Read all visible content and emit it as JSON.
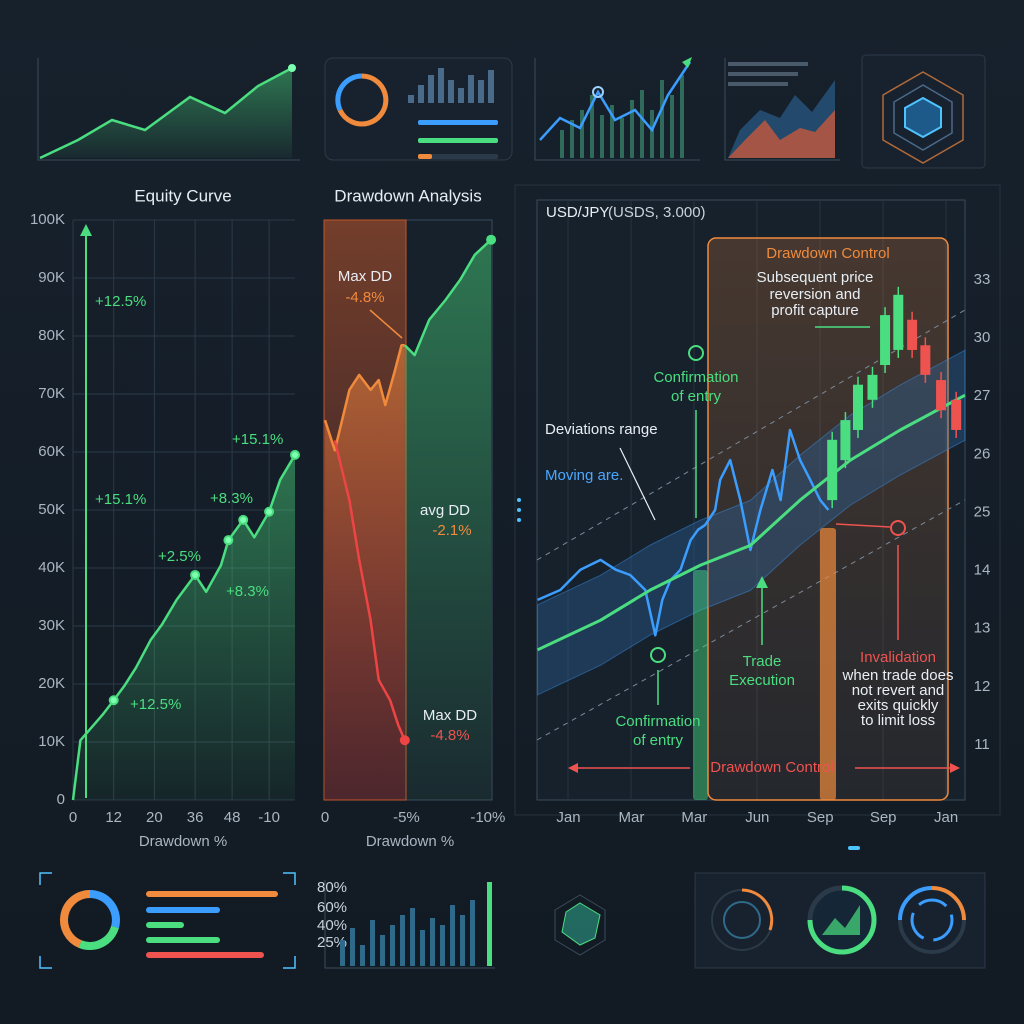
{
  "chart_data": [
    {
      "type": "line",
      "title": "Equity Curve",
      "xlabel": "Drawdown %",
      "color": "#4ade80",
      "x": [
        0,
        1,
        4,
        5.5,
        7,
        8.5,
        10.5,
        12,
        14,
        16.5,
        18,
        20,
        21,
        23,
        24.5,
        26.5,
        28,
        30
      ],
      "values": [
        0,
        10300,
        14700,
        17200,
        19800,
        22800,
        27600,
        30200,
        34500,
        38800,
        35900,
        40500,
        44800,
        48300,
        45300,
        49700,
        55200,
        59500
      ],
      "xlim": [
        0,
        30
      ],
      "xticks": [
        0,
        {
          "value": 5.5,
          "label": "12"
        },
        {
          "value": 11,
          "label": "20"
        },
        {
          "value": 16.5,
          "label": "36"
        },
        {
          "value": 21.5,
          "label": "48"
        },
        {
          "value": 26.5,
          "label": "-10"
        }
      ],
      "ylim": [
        0,
        100000
      ],
      "yticks": [
        0,
        {
          "value": 10000,
          "label": "10K"
        },
        {
          "value": 20000,
          "label": "20K"
        },
        {
          "value": 30000,
          "label": "30K"
        },
        {
          "value": 40000,
          "label": "40K"
        },
        {
          "value": 50000,
          "label": "50K"
        },
        {
          "value": 60000,
          "label": "60K"
        },
        {
          "value": 70000,
          "label": "70K"
        },
        {
          "value": 80000,
          "label": "80K"
        },
        {
          "value": 90000,
          "label": "90K"
        },
        {
          "value": 100000,
          "label": "100K"
        }
      ],
      "grid": true,
      "annotations": [
        "+12.5%",
        "+15.1%",
        "+15.1%",
        "+8.3%",
        "+2.5%",
        "+8.3%",
        "+12.5%"
      ]
    },
    {
      "type": "area",
      "title": "Drawdown Analysis",
      "xlabel": "Drawdown %",
      "xlim": [
        0,
        -10.5
      ],
      "xticks": [
        0,
        {
          "value": -5,
          "label": "-5%"
        },
        {
          "value": -10,
          "label": "-10%"
        }
      ],
      "ylim": [
        0,
        100
      ],
      "series": [
        {
          "color": "#f08a3c",
          "x": [
            0,
            -0.6,
            -1.5,
            -2.1,
            -2.8,
            -3.3,
            -3.7,
            -4.3,
            -4.7,
            -4.9
          ],
          "values": [
            65.5,
            60.3,
            70.7,
            73.3,
            70.7,
            72.4,
            68.1,
            74.1,
            78.4,
            78.4
          ]
        },
        {
          "color": "#4ade80",
          "x": [
            -4.9,
            -5.5,
            -6.4,
            -7.4,
            -8.3,
            -9.2,
            -10.2
          ],
          "values": [
            78.4,
            76.7,
            82.8,
            86.2,
            89.7,
            94,
            96.6
          ]
        },
        {
          "color": "#ef4444",
          "x": [
            -0.6,
            -1.5,
            -2.1,
            -2.8,
            -3.3,
            -4,
            -4.5,
            -4.9
          ],
          "values": [
            62,
            51.7,
            41.4,
            31,
            20.7,
            17.2,
            12.9,
            10.3
          ]
        }
      ],
      "annotations": [
        [
          "Max DD",
          "-4.8%"
        ],
        [
          "avg DD",
          "-2.1%"
        ],
        [
          "Max DD",
          "-4.8%"
        ]
      ]
    },
    {
      "type": "candlestick",
      "title": "USD/JPY",
      "subtitle": "(USDS, 3.000)",
      "categories": [
        "Jan",
        "Mar",
        "Mar",
        "Jun",
        "Sep",
        "Sep",
        "Jan"
      ],
      "ytick_labels": [
        "33",
        "30",
        "27",
        "26",
        "25",
        "14",
        "13",
        "12",
        "11"
      ],
      "xlim": [
        -0.5,
        6.3
      ],
      "ylim": [
        0,
        100
      ],
      "series": [
        {
          "color": "#3b9eff",
          "x": [
            -0.49,
            -0.13,
            0.19,
            0.51,
            0.75,
            0.98,
            1.22,
            1.38,
            1.49,
            1.62,
            1.78,
            1.94,
            2.06,
            2.17,
            2.33,
            2.41,
            2.57,
            2.73,
            2.89,
            3.05,
            3.24,
            3.37,
            3.52,
            3.68,
            3.84,
            4,
            4.13
          ],
          "values": [
            34.5,
            36.2,
            39.7,
            41.4,
            39.7,
            38.8,
            36.2,
            28.4,
            34.5,
            37.9,
            39.7,
            44.8,
            46.6,
            47.4,
            50,
            55.2,
            58.6,
            51.7,
            43.1,
            50,
            56.9,
            51.7,
            63.8,
            58.6,
            55.2,
            51.7,
            50
          ]
        },
        {
          "color": "#4ade80",
          "x": [
            -0.49,
            0.51,
            1.3,
            2.1,
            2.89,
            3.68,
            4.48,
            5.27,
            6.3
          ],
          "values": [
            25.9,
            31,
            36.2,
            40.5,
            43.9,
            51.7,
            58.6,
            63.8,
            69.8
          ]
        }
      ],
      "candles": {
        "x": [
          4.19,
          4.4,
          4.6,
          4.83,
          5.03,
          5.24,
          5.46,
          5.67,
          5.92,
          6.16
        ],
        "open": [
          51.7,
          58.6,
          63.8,
          69,
          75,
          77.6,
          82.8,
          78.4,
          72.4,
          69
        ],
        "close": [
          62.1,
          65.5,
          71.6,
          73.3,
          83.6,
          87.1,
          77.6,
          73.3,
          67.2,
          63.8
        ]
      },
      "annotations": [
        [
          "Drawdown Control"
        ],
        [
          "Subsequent price",
          "reversion and",
          "profit capture"
        ],
        [
          "Confirmation",
          "of entry"
        ],
        [
          "Deviations range"
        ],
        [
          "Moving are."
        ],
        [
          "Trade",
          "Execution"
        ],
        [
          "Confirmation",
          "of entry"
        ],
        [
          "Invalidation"
        ],
        [
          "when trade does",
          "not revert and",
          "exits quickly",
          "to limit loss"
        ],
        [
          "Drawdown Control"
        ]
      ]
    }
  ],
  "widgets": {
    "bar_labels": [
      "80%",
      "60%",
      "40%",
      "25%"
    ]
  }
}
